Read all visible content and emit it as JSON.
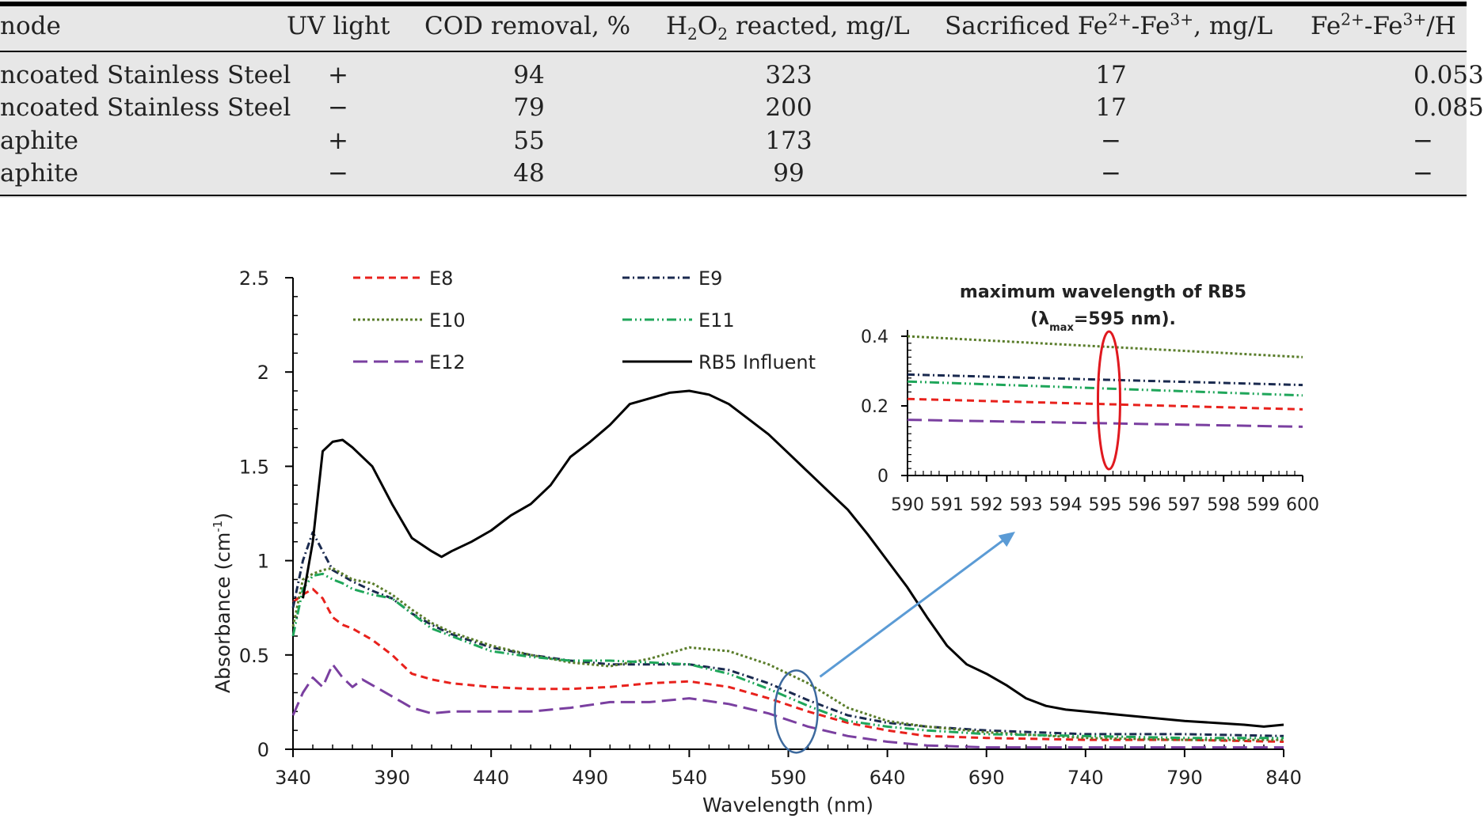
{
  "table": {
    "headers": {
      "anode": "node",
      "uv_light": "UV light",
      "cod_removal": "COD removal, %",
      "h2o2_a": "H",
      "h2o2_sub1": "2",
      "h2o2_b": "O",
      "h2o2_sub2": "2",
      "h2o2_c": " reacted, mg/L",
      "fe_a": "Sacrificed Fe",
      "fe_sup1": "2+",
      "fe_b": "-Fe",
      "fe_sup2": "3+",
      "fe_c": ", mg/L",
      "ratio_a": "Fe",
      "ratio_sup1": "2+",
      "ratio_b": "-Fe",
      "ratio_sup2": "3+",
      "ratio_c": "/H"
    },
    "rows": [
      {
        "anode": "ncoated Stainless Steel",
        "uv": "+",
        "cod": "94",
        "h2o2": "323",
        "fe": "17",
        "ratio": "0.053"
      },
      {
        "anode": "ncoated Stainless Steel",
        "uv": "−",
        "cod": "79",
        "h2o2": "200",
        "fe": "17",
        "ratio": "0.085"
      },
      {
        "anode": "aphite",
        "uv": "+",
        "cod": "55",
        "h2o2": "173",
        "fe": "−",
        "ratio": "−"
      },
      {
        "anode": "aphite",
        "uv": "−",
        "cod": "48",
        "h2o2": "99",
        "fe": "−",
        "ratio": "−"
      }
    ]
  },
  "chart_data": [
    {
      "type": "line",
      "xlabel": "Wavelength (nm)",
      "ylabel_main": "Absorbance (cm",
      "ylabel_sup": "-1",
      "ylabel_end": ")",
      "xlim": [
        340,
        840
      ],
      "ylim": [
        0,
        2.5
      ],
      "xticks": [
        "340",
        "390",
        "440",
        "490",
        "540",
        "590",
        "640",
        "690",
        "740",
        "790",
        "840"
      ],
      "yticks": [
        "0",
        "0.5",
        "1",
        "1.5",
        "2",
        "2.5"
      ],
      "legend_position": "top",
      "series": [
        {
          "name": "E8",
          "color": "#e8211c",
          "dash": "dashed",
          "x": [
            340,
            345,
            350,
            355,
            360,
            365,
            370,
            380,
            390,
            400,
            410,
            420,
            440,
            460,
            480,
            500,
            520,
            540,
            560,
            580,
            600,
            620,
            640,
            660,
            690,
            740,
            790,
            840
          ],
          "y": [
            0.78,
            0.82,
            0.85,
            0.8,
            0.7,
            0.66,
            0.64,
            0.58,
            0.5,
            0.4,
            0.37,
            0.35,
            0.33,
            0.32,
            0.32,
            0.33,
            0.35,
            0.36,
            0.33,
            0.27,
            0.2,
            0.14,
            0.1,
            0.07,
            0.06,
            0.05,
            0.05,
            0.04
          ]
        },
        {
          "name": "E9",
          "color": "#1a2a4f",
          "dash": "dashdot",
          "x": [
            340,
            345,
            350,
            355,
            360,
            365,
            370,
            380,
            390,
            400,
            410,
            420,
            440,
            460,
            480,
            500,
            520,
            540,
            560,
            580,
            600,
            620,
            640,
            660,
            690,
            740,
            790,
            840
          ],
          "y": [
            0.75,
            1.0,
            1.15,
            1.05,
            0.95,
            0.92,
            0.89,
            0.84,
            0.8,
            0.72,
            0.66,
            0.61,
            0.54,
            0.5,
            0.47,
            0.45,
            0.45,
            0.45,
            0.42,
            0.35,
            0.26,
            0.18,
            0.14,
            0.12,
            0.1,
            0.08,
            0.08,
            0.07
          ]
        },
        {
          "name": "E10",
          "color": "#5a7d2b",
          "dash": "dotted",
          "x": [
            340,
            345,
            350,
            355,
            360,
            365,
            370,
            380,
            390,
            400,
            410,
            420,
            440,
            460,
            480,
            500,
            520,
            540,
            560,
            580,
            600,
            620,
            640,
            660,
            690,
            740,
            790,
            840
          ],
          "y": [
            0.65,
            0.9,
            0.93,
            0.95,
            0.96,
            0.93,
            0.9,
            0.88,
            0.82,
            0.74,
            0.67,
            0.62,
            0.55,
            0.5,
            0.46,
            0.44,
            0.48,
            0.54,
            0.52,
            0.45,
            0.35,
            0.22,
            0.15,
            0.12,
            0.09,
            0.06,
            0.05,
            0.05
          ]
        },
        {
          "name": "E11",
          "color": "#1fa65a",
          "dash": "dashdotdot",
          "x": [
            340,
            345,
            350,
            355,
            360,
            365,
            370,
            380,
            390,
            400,
            410,
            420,
            440,
            460,
            480,
            500,
            520,
            540,
            560,
            580,
            600,
            620,
            640,
            660,
            690,
            740,
            790,
            840
          ],
          "y": [
            0.6,
            0.85,
            0.92,
            0.93,
            0.9,
            0.88,
            0.85,
            0.82,
            0.8,
            0.72,
            0.64,
            0.6,
            0.52,
            0.49,
            0.47,
            0.47,
            0.46,
            0.45,
            0.4,
            0.32,
            0.23,
            0.15,
            0.12,
            0.1,
            0.08,
            0.07,
            0.06,
            0.06
          ]
        },
        {
          "name": "E12",
          "color": "#7a3fa0",
          "dash": "longdash",
          "x": [
            340,
            345,
            350,
            355,
            360,
            365,
            370,
            375,
            380,
            390,
            400,
            410,
            420,
            440,
            460,
            480,
            500,
            520,
            540,
            560,
            580,
            600,
            620,
            640,
            660,
            690,
            740,
            790,
            840
          ],
          "y": [
            0.18,
            0.3,
            0.38,
            0.33,
            0.45,
            0.38,
            0.33,
            0.37,
            0.34,
            0.28,
            0.22,
            0.19,
            0.2,
            0.2,
            0.2,
            0.22,
            0.25,
            0.25,
            0.27,
            0.24,
            0.19,
            0.12,
            0.07,
            0.04,
            0.02,
            0.01,
            0.01,
            0.01,
            0.01
          ]
        },
        {
          "name": "RB5 Influent",
          "color": "#000000",
          "dash": "solid",
          "x": [
            345,
            350,
            355,
            360,
            365,
            370,
            380,
            390,
            400,
            410,
            415,
            420,
            430,
            440,
            450,
            460,
            470,
            480,
            490,
            500,
            510,
            520,
            530,
            540,
            550,
            560,
            570,
            580,
            590,
            600,
            610,
            620,
            630,
            640,
            650,
            660,
            670,
            680,
            690,
            700,
            710,
            720,
            730,
            740,
            760,
            790,
            820,
            830,
            840
          ],
          "y": [
            0.8,
            1.1,
            1.58,
            1.63,
            1.64,
            1.6,
            1.5,
            1.3,
            1.12,
            1.05,
            1.02,
            1.05,
            1.1,
            1.16,
            1.24,
            1.3,
            1.4,
            1.55,
            1.63,
            1.72,
            1.83,
            1.86,
            1.89,
            1.9,
            1.88,
            1.83,
            1.75,
            1.67,
            1.57,
            1.47,
            1.37,
            1.27,
            1.14,
            1.0,
            0.86,
            0.7,
            0.55,
            0.45,
            0.4,
            0.34,
            0.27,
            0.23,
            0.21,
            0.2,
            0.18,
            0.15,
            0.13,
            0.12,
            0.13
          ]
        }
      ]
    },
    {
      "type": "line",
      "title_line1": "maximum wavelength of RB5",
      "title_line2_a": "(λ",
      "title_line2_sub": "max",
      "title_line2_b": "=595 nm).",
      "xlim": [
        590,
        600
      ],
      "ylim": [
        0,
        0.4
      ],
      "xticks": [
        "590",
        "591",
        "592",
        "593",
        "594",
        "595",
        "596",
        "597",
        "598",
        "599",
        "600"
      ],
      "yticks": [
        "0",
        "0.2",
        "0.4"
      ],
      "series": [
        {
          "name": "E8",
          "color": "#e8211c",
          "dash": "dashed",
          "x": [
            590,
            600
          ],
          "y": [
            0.22,
            0.19
          ]
        },
        {
          "name": "E9",
          "color": "#1a2a4f",
          "dash": "dashdot",
          "x": [
            590,
            600
          ],
          "y": [
            0.29,
            0.26
          ]
        },
        {
          "name": "E10",
          "color": "#5a7d2b",
          "dash": "dotted",
          "x": [
            590,
            600
          ],
          "y": [
            0.4,
            0.34
          ]
        },
        {
          "name": "E11",
          "color": "#1fa65a",
          "dash": "dashdotdot",
          "x": [
            590,
            600
          ],
          "y": [
            0.27,
            0.23
          ]
        },
        {
          "name": "E12",
          "color": "#7a3fa0",
          "dash": "longdash",
          "x": [
            590,
            600
          ],
          "y": [
            0.16,
            0.14
          ]
        }
      ]
    }
  ],
  "annotation_colors": {
    "arrow": "#5b9bd5",
    "main_ellipse": "#3d6a9e",
    "inset_ellipse": "#e0191f"
  }
}
